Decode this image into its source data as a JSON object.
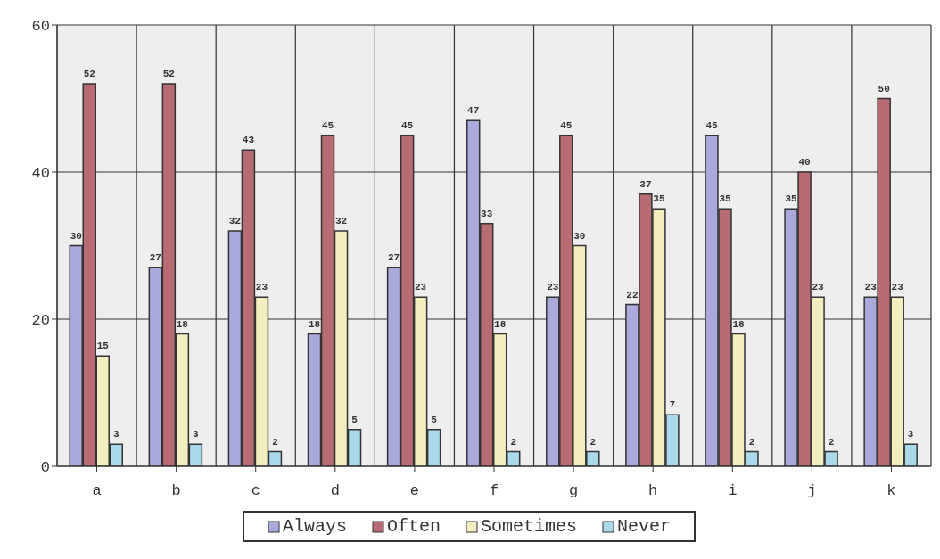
{
  "chart_data": {
    "type": "bar",
    "categories": [
      "a",
      "b",
      "c",
      "d",
      "e",
      "f",
      "g",
      "h",
      "i",
      "j",
      "k"
    ],
    "series": [
      {
        "name": "Always",
        "color": "#a9a9dc",
        "values": [
          30,
          27,
          32,
          18,
          27,
          47,
          23,
          22,
          45,
          35,
          23
        ]
      },
      {
        "name": "Often",
        "color": "#b86b73",
        "values": [
          52,
          52,
          43,
          45,
          45,
          33,
          45,
          37,
          35,
          40,
          50
        ]
      },
      {
        "name": "Sometimes",
        "color": "#f3eebf",
        "values": [
          15,
          18,
          23,
          32,
          23,
          18,
          30,
          35,
          18,
          23,
          23
        ]
      },
      {
        "name": "Never",
        "color": "#a9d9ea",
        "values": [
          3,
          3,
          2,
          5,
          5,
          2,
          2,
          7,
          2,
          2,
          3
        ]
      }
    ],
    "ylim": [
      0,
      60
    ],
    "yticks": [
      0,
      20,
      40,
      60
    ],
    "grid": true,
    "legend": "bottom",
    "data_labels": true
  }
}
